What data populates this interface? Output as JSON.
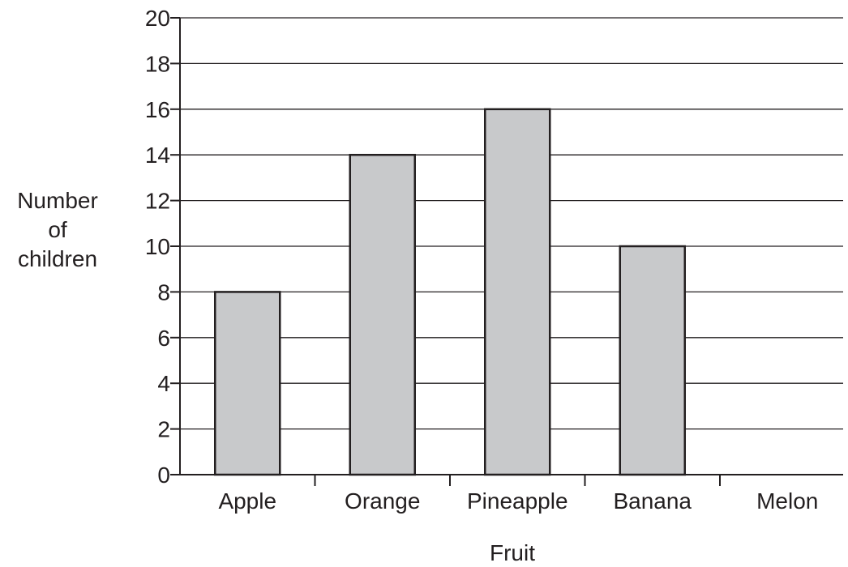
{
  "chart_data": {
    "type": "bar",
    "title": "",
    "categories": [
      "Apple",
      "Orange",
      "Pineapple",
      "Banana",
      "Melon"
    ],
    "values": [
      8,
      14,
      16,
      10,
      0
    ],
    "xlabel": "Fruit",
    "ylabel_lines": [
      "Number",
      "of",
      "children"
    ],
    "ylim": [
      0,
      20
    ],
    "yticks": [
      0,
      2,
      4,
      6,
      8,
      10,
      12,
      14,
      16,
      18,
      20
    ],
    "grid": true,
    "legend": "none",
    "colors": {
      "bar_fill": "#c8c9cb",
      "bar_stroke": "#231f20",
      "axis": "#231f20",
      "text": "#231f20"
    }
  }
}
